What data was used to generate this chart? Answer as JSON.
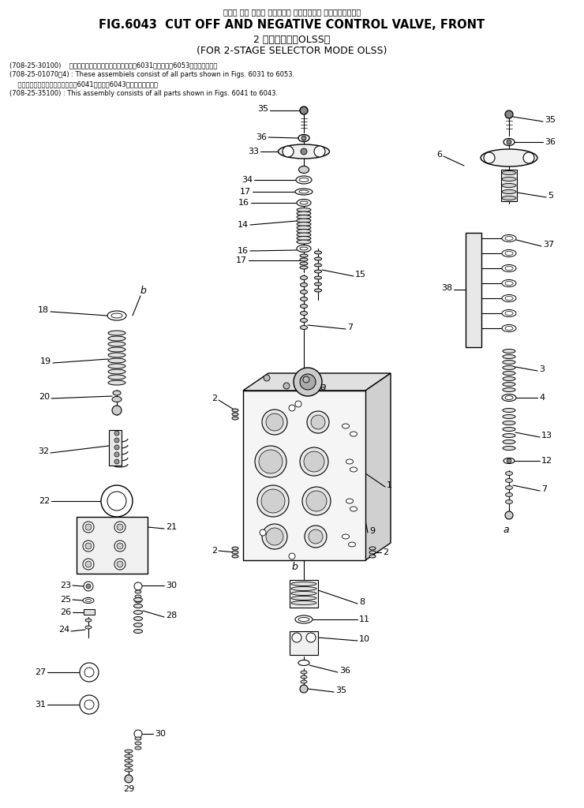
{
  "title_line0": "カット オフ および ネガティブ コントロール バルブ、フロント",
  "title_line1": "FIG.6043  CUT OFF AND NEGATIVE CONTROL VALVE, FRONT",
  "title_line2": "2 段モード切掰OLSS用",
  "title_line3": "(FOR 2-STAGE SELECTOR MODE OLSS)",
  "note1_jp": "(708-25-30100)    これらのアッセンブリの構成部品は第6031図および第6053図を合みます．",
  "note1_en": "(708-25-01070～4) : These assembiels consist of all parts shown in Figs. 6031 to 6053.",
  "note2_jp": "    このアッセンブリの構成部品は第6041図から第6043図まで合みます．",
  "note2_en": "(708-25-35100) : This assembly consists of all parts shown in Figs. 6041 to 6043.",
  "bg_color": "#ffffff",
  "line_color": "#000000",
  "text_color": "#000000"
}
